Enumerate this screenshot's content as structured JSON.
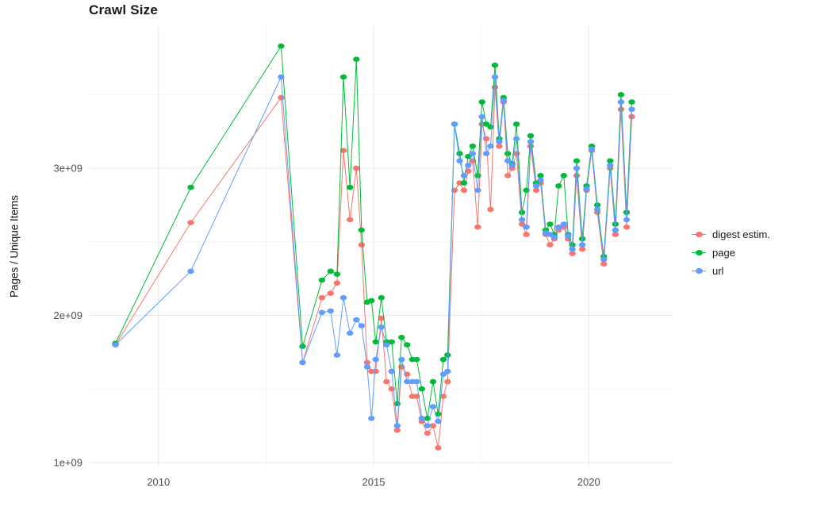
{
  "page": {
    "title": "Crawl Size"
  },
  "chart_data": {
    "type": "line",
    "title": "Crawl Size",
    "xlabel": "",
    "ylabel": "Pages / Unique Items",
    "xlim": [
      2008.4,
      2021.95
    ],
    "ylim": [
      973000000.0,
      3965000000.0
    ],
    "grid": true,
    "legend_position": "right",
    "background_color": "#ffffff",
    "grid_major_color": "#e7e7e7",
    "grid_minor_color": "#f4f4f4",
    "x_ticks": [
      {
        "value": 2010,
        "label": "2010"
      },
      {
        "value": 2015,
        "label": "2015"
      },
      {
        "value": 2020,
        "label": "2020"
      }
    ],
    "y_ticks": [
      {
        "value": 1000000000.0,
        "label": "1e+09"
      },
      {
        "value": 2000000000.0,
        "label": "2e+09"
      },
      {
        "value": 3000000000.0,
        "label": "3e+09"
      }
    ],
    "x_minor": [
      2012.5,
      2017.5
    ],
    "y_minor": [
      1500000000.0,
      2500000000.0,
      3500000000.0
    ],
    "x": [
      2009.0,
      2010.75,
      2012.85,
      2013.35,
      2013.8,
      2014.0,
      2014.15,
      2014.3,
      2014.45,
      2014.6,
      2014.72,
      2014.85,
      2014.95,
      2015.05,
      2015.18,
      2015.3,
      2015.42,
      2015.55,
      2015.65,
      2015.78,
      2015.9,
      2016.0,
      2016.12,
      2016.25,
      2016.38,
      2016.5,
      2016.62,
      2016.72,
      2016.88,
      2017.0,
      2017.1,
      2017.2,
      2017.3,
      2017.42,
      2017.52,
      2017.62,
      2017.72,
      2017.82,
      2017.92,
      2018.02,
      2018.12,
      2018.22,
      2018.32,
      2018.45,
      2018.55,
      2018.65,
      2018.78,
      2018.88,
      2019.0,
      2019.1,
      2019.2,
      2019.3,
      2019.42,
      2019.52,
      2019.62,
      2019.72,
      2019.85,
      2019.95,
      2020.07,
      2020.2,
      2020.35,
      2020.5,
      2020.62,
      2020.75,
      2020.88,
      2021.0
    ],
    "series": [
      {
        "name": "digest estim.",
        "color": "#F8766D",
        "y": [
          1800000000.0,
          2630000000.0,
          3480000000.0,
          1680000000.0,
          2120000000.0,
          2150000000.0,
          2220000000.0,
          3120000000.0,
          2650000000.0,
          3000000000.0,
          2480000000.0,
          1680000000.0,
          1620000000.0,
          1620000000.0,
          1980000000.0,
          1550000000.0,
          1500000000.0,
          1220000000.0,
          1650000000.0,
          1600000000.0,
          1450000000.0,
          1450000000.0,
          1280000000.0,
          1200000000.0,
          1250000000.0,
          1100000000.0,
          1450000000.0,
          1550000000.0,
          2850000000.0,
          2900000000.0,
          2850000000.0,
          2980000000.0,
          3050000000.0,
          2600000000.0,
          3300000000.0,
          3200000000.0,
          2720000000.0,
          3550000000.0,
          3150000000.0,
          3450000000.0,
          2950000000.0,
          3000000000.0,
          3100000000.0,
          2620000000.0,
          2550000000.0,
          3150000000.0,
          2850000000.0,
          2900000000.0,
          2550000000.0,
          2480000000.0,
          2520000000.0,
          2580000000.0,
          2600000000.0,
          2520000000.0,
          2420000000.0,
          2950000000.0,
          2450000000.0,
          2850000000.0,
          3120000000.0,
          2700000000.0,
          2350000000.0,
          3000000000.0,
          2550000000.0,
          3400000000.0,
          2600000000.0,
          3350000000.0
        ]
      },
      {
        "name": "page",
        "color": "#00BA38",
        "y": [
          1810000000.0,
          2870000000.0,
          3830000000.0,
          1790000000.0,
          2240000000.0,
          2300000000.0,
          2280000000.0,
          3620000000.0,
          2870000000.0,
          3740000000.0,
          2580000000.0,
          2090000000.0,
          2100000000.0,
          1820000000.0,
          2120000000.0,
          1820000000.0,
          1820000000.0,
          1400000000.0,
          1850000000.0,
          1800000000.0,
          1700000000.0,
          1700000000.0,
          1500000000.0,
          1300000000.0,
          1550000000.0,
          1330000000.0,
          1700000000.0,
          1730000000.0,
          3300000000.0,
          3100000000.0,
          2900000000.0,
          3080000000.0,
          3150000000.0,
          2950000000.0,
          3450000000.0,
          3300000000.0,
          3280000000.0,
          3700000000.0,
          3200000000.0,
          3480000000.0,
          3100000000.0,
          3030000000.0,
          3300000000.0,
          2700000000.0,
          2850000000.0,
          3220000000.0,
          2900000000.0,
          2950000000.0,
          2580000000.0,
          2620000000.0,
          2550000000.0,
          2880000000.0,
          2950000000.0,
          2550000000.0,
          2480000000.0,
          3050000000.0,
          2520000000.0,
          2880000000.0,
          3150000000.0,
          2750000000.0,
          2400000000.0,
          3050000000.0,
          2620000000.0,
          3500000000.0,
          2700000000.0,
          3450000000.0
        ]
      },
      {
        "name": "url",
        "color": "#619CFF",
        "y": [
          1800000000.0,
          2300000000.0,
          3620000000.0,
          1680000000.0,
          2020000000.0,
          2030000000.0,
          1730000000.0,
          2120000000.0,
          1880000000.0,
          1970000000.0,
          1930000000.0,
          1650000000.0,
          1300000000.0,
          1700000000.0,
          1920000000.0,
          1800000000.0,
          1620000000.0,
          1250000000.0,
          1700000000.0,
          1550000000.0,
          1550000000.0,
          1550000000.0,
          1300000000.0,
          1250000000.0,
          1380000000.0,
          1280000000.0,
          1600000000.0,
          1620000000.0,
          3300000000.0,
          3050000000.0,
          2950000000.0,
          3020000000.0,
          3100000000.0,
          2850000000.0,
          3350000000.0,
          3100000000.0,
          3150000000.0,
          3620000000.0,
          3180000000.0,
          3460000000.0,
          3050000000.0,
          3020000000.0,
          3200000000.0,
          2650000000.0,
          2600000000.0,
          3180000000.0,
          2880000000.0,
          2920000000.0,
          2560000000.0,
          2550000000.0,
          2530000000.0,
          2600000000.0,
          2620000000.0,
          2540000000.0,
          2450000000.0,
          3000000000.0,
          2480000000.0,
          2860000000.0,
          3130000000.0,
          2720000000.0,
          2380000000.0,
          3020000000.0,
          2580000000.0,
          3450000000.0,
          2650000000.0,
          3400000000.0
        ]
      }
    ]
  }
}
